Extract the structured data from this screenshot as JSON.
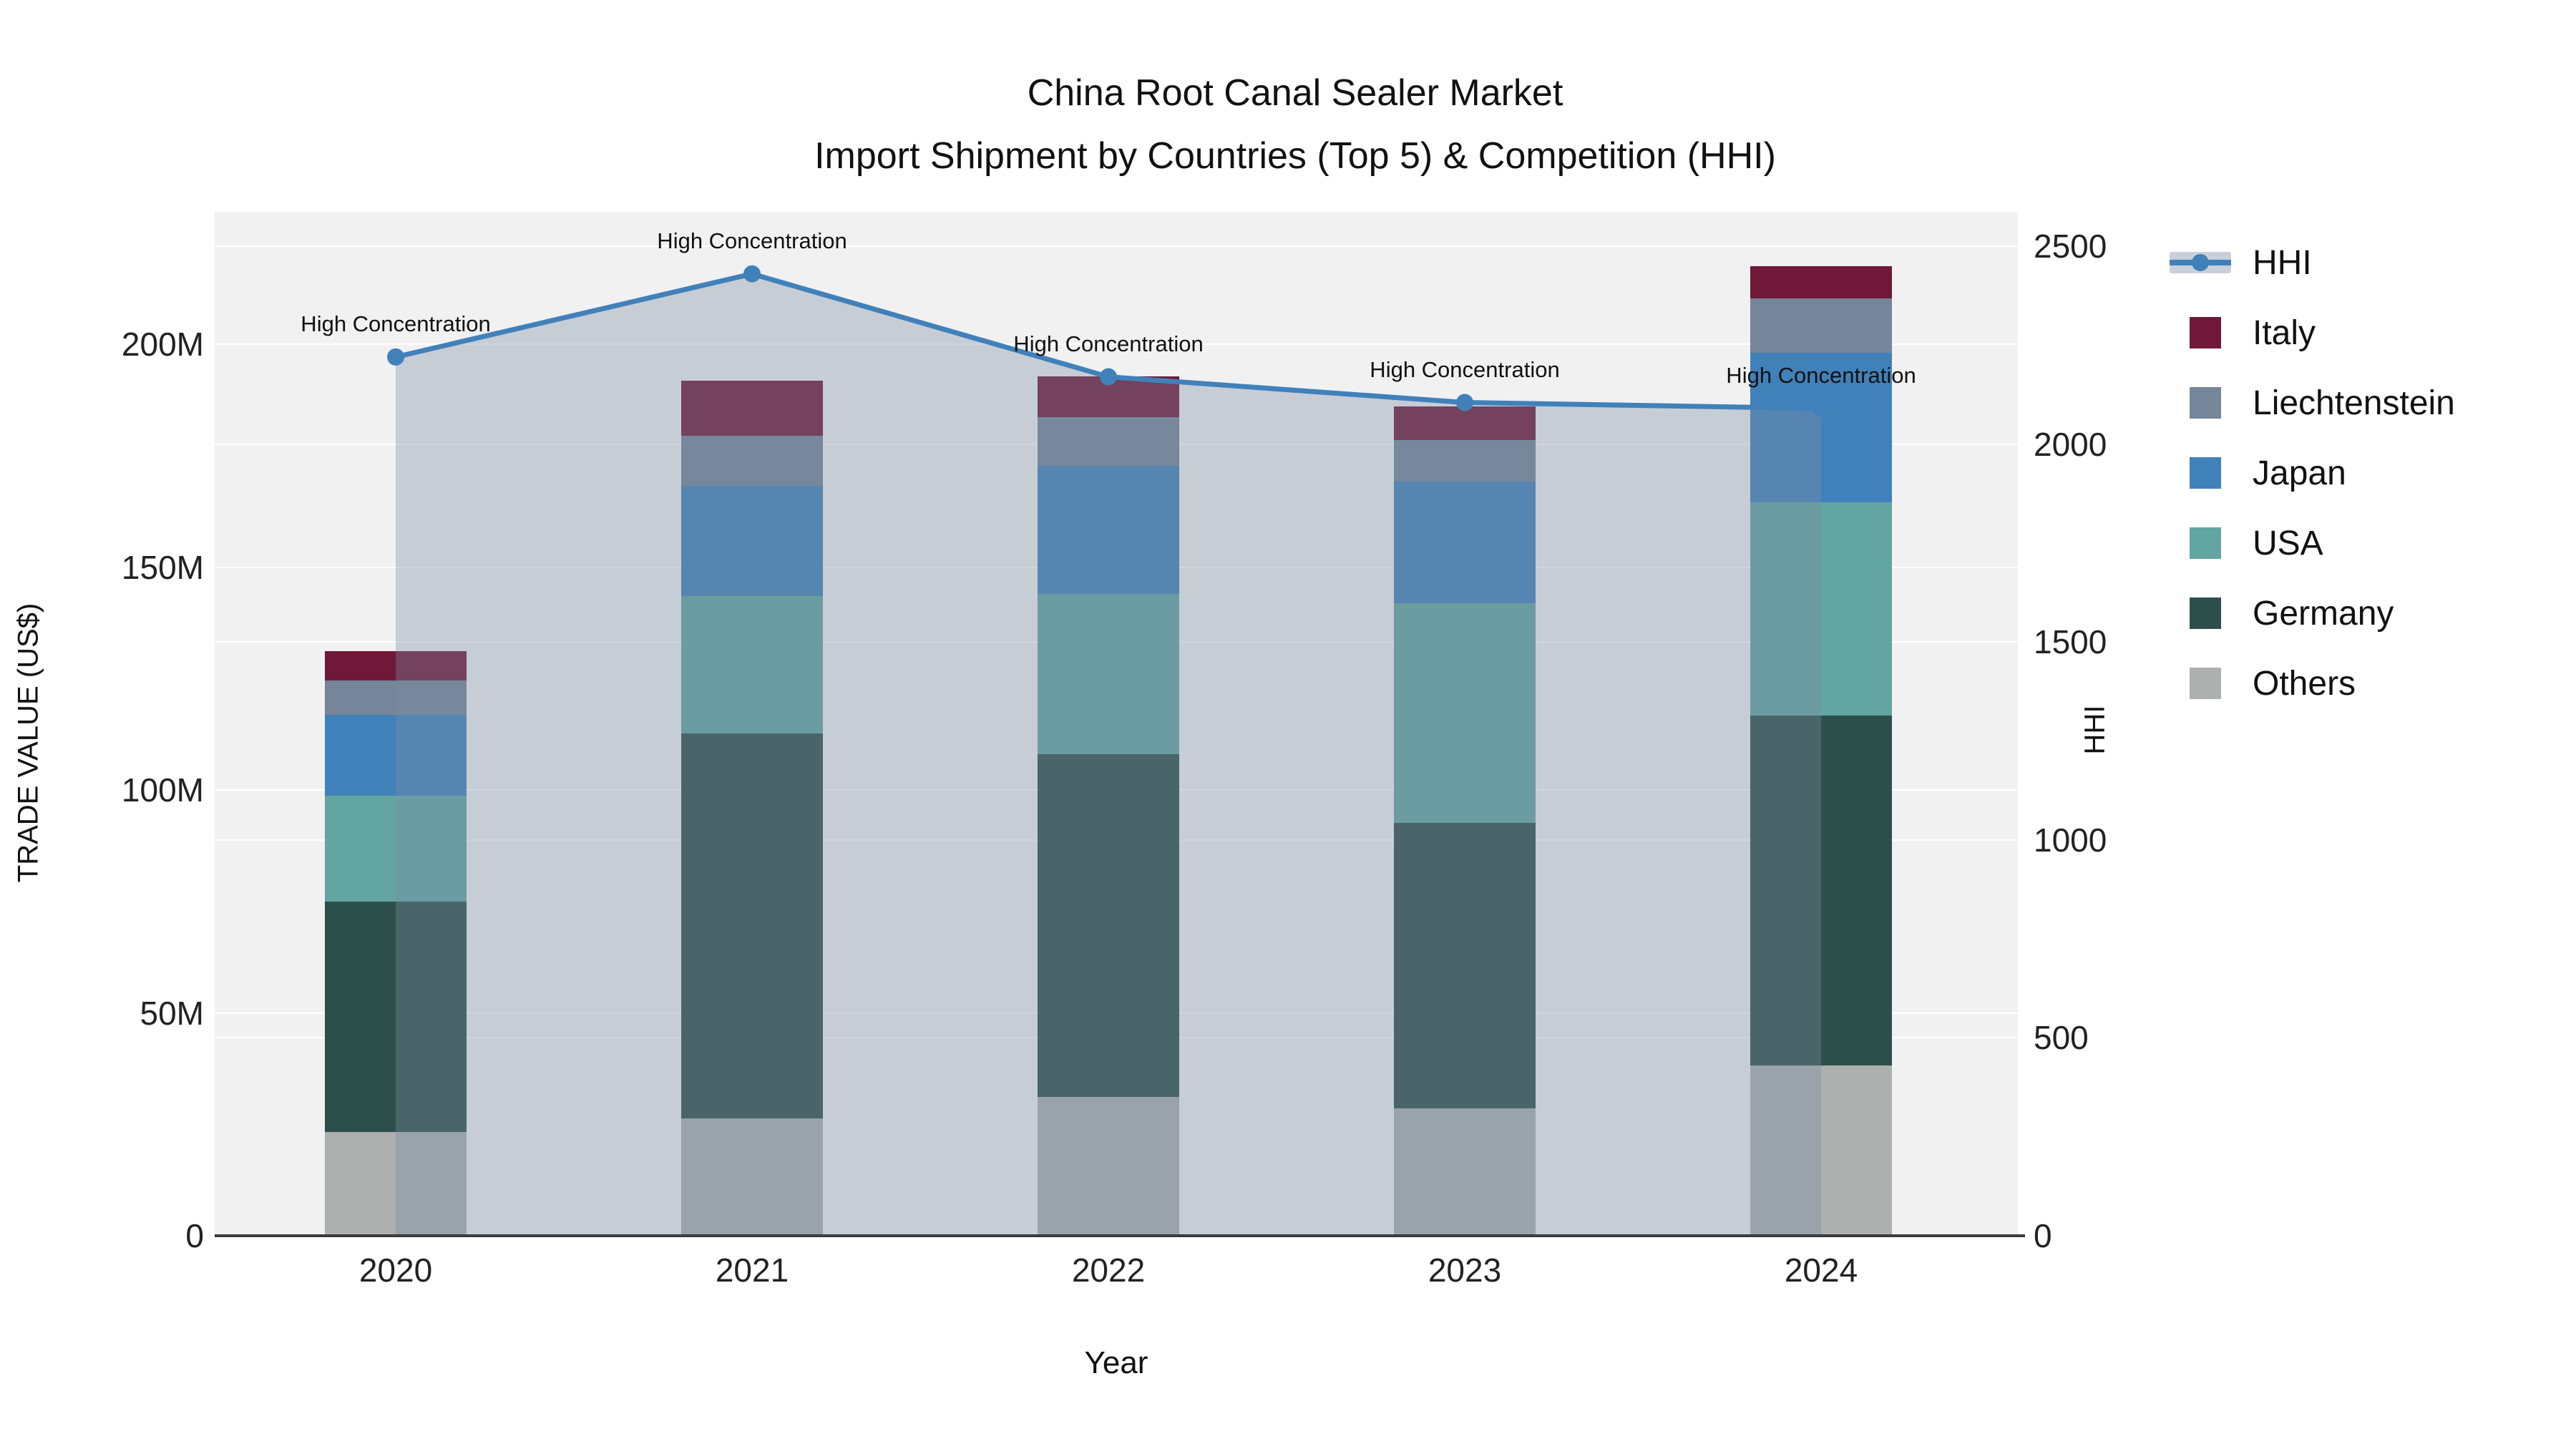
{
  "title": {
    "line1": "China Root Canal Sealer Market",
    "line2": "Import Shipment by Countries (Top 5) & Competition (HHI)"
  },
  "chart_data": {
    "type": "bar+line",
    "title": "China Root Canal Sealer Market — Import Shipment by Countries (Top 5) & Competition (HHI)",
    "categories": [
      "2020",
      "2021",
      "2022",
      "2023",
      "2024"
    ],
    "stack_order": [
      "Others",
      "Germany",
      "USA",
      "Japan",
      "Liechtenstein",
      "Italy"
    ],
    "series": [
      {
        "name": "Others",
        "unit": "M US$",
        "values": [
          23.3,
          26.3,
          31.1,
          28.6,
          38.2
        ]
      },
      {
        "name": "Germany",
        "unit": "M US$",
        "values": [
          51.7,
          86.4,
          76.9,
          64.0,
          78.5
        ]
      },
      {
        "name": "USA",
        "unit": "M US$",
        "values": [
          23.7,
          30.8,
          36.0,
          49.3,
          47.8
        ]
      },
      {
        "name": "Japan",
        "unit": "M US$",
        "values": [
          18.2,
          24.7,
          28.7,
          27.3,
          33.6
        ]
      },
      {
        "name": "Liechtenstein",
        "unit": "M US$",
        "values": [
          7.7,
          11.3,
          10.9,
          9.3,
          12.2
        ]
      },
      {
        "name": "Italy",
        "unit": "M US$",
        "values": [
          6.5,
          12.3,
          9.2,
          7.5,
          7.2
        ]
      }
    ],
    "bar_totals": [
      131.1,
      191.8,
      192.8,
      186.0,
      217.5
    ],
    "line_series": {
      "name": "HHI",
      "yaxis": "right",
      "values": [
        2220,
        2430,
        2170,
        2105,
        2090
      ]
    },
    "annotations": [
      {
        "text": "High Concentration",
        "x": "2020"
      },
      {
        "text": "High Concentration",
        "x": "2021"
      },
      {
        "text": "High Concentration",
        "x": "2022"
      },
      {
        "text": "High Concentration",
        "x": "2023"
      },
      {
        "text": "High Concentration",
        "x": "2024"
      }
    ],
    "xlabel": "Year",
    "ylabel_left": "TRADE VALUE (US$)",
    "ylabel_right": "HHI",
    "ylim_left": [
      0,
      230
    ],
    "ylim_right": [
      0,
      2585
    ],
    "yticks_left": {
      "values": [
        0,
        50,
        100,
        150,
        200
      ],
      "labels": [
        "0",
        "50M",
        "100M",
        "150M",
        "200M"
      ]
    },
    "yticks_right": {
      "values": [
        0,
        500,
        1000,
        1500,
        2000,
        2500
      ],
      "labels": [
        "0",
        "500",
        "1000",
        "1500",
        "2000",
        "2500"
      ]
    },
    "grid": true,
    "legend_position": "right",
    "legend_order": [
      "HHI",
      "Italy",
      "Liechtenstein",
      "Japan",
      "USA",
      "Germany",
      "Others"
    ]
  },
  "colors": {
    "Italy": "#6f1838",
    "Liechtenstein": "#75869a",
    "Japan": "#4181ba",
    "USA": "#62a5a1",
    "Germany": "#2d4f4b",
    "Others": "#adb0af",
    "hhi_line": "#4181ba",
    "area_fill": "#7d8ca0",
    "area_fill_opacity": 0.36,
    "area_swatch": "#c9d0da",
    "plot_bg": "#f1f1f2",
    "grid": "#ffffff",
    "axis_line": "#3b3b3b",
    "text": "#111111"
  }
}
